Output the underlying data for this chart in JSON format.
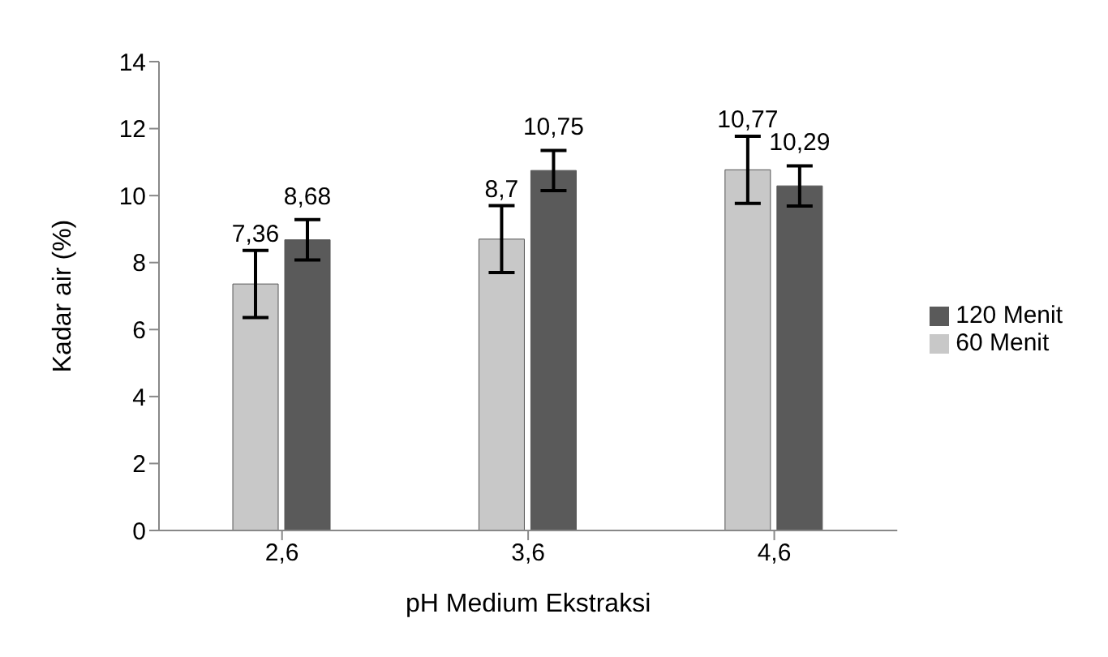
{
  "chart_data": {
    "type": "bar",
    "xlabel": "pH Medium Ekstraksi",
    "ylabel": "Kadar air  (%)",
    "categories": [
      "2,6",
      "3,6",
      "4,6"
    ],
    "series": [
      {
        "name": "60 Menit",
        "color": "#c8c8c8",
        "values": [
          7.36,
          8.7,
          10.77
        ],
        "errors": [
          1.0,
          1.0,
          1.0
        ],
        "value_labels": [
          "7,36",
          "8,7",
          "10,77"
        ]
      },
      {
        "name": "120 Menit",
        "color": "#5a5a5a",
        "values": [
          8.68,
          10.75,
          10.29
        ],
        "errors": [
          0.6,
          0.6,
          0.6
        ],
        "value_labels": [
          "8,68",
          "10,75",
          "10,29"
        ]
      }
    ],
    "ylim": [
      0,
      14
    ],
    "yticks": [
      0,
      2,
      4,
      6,
      8,
      10,
      12,
      14
    ],
    "grid": false,
    "legend": "right"
  }
}
